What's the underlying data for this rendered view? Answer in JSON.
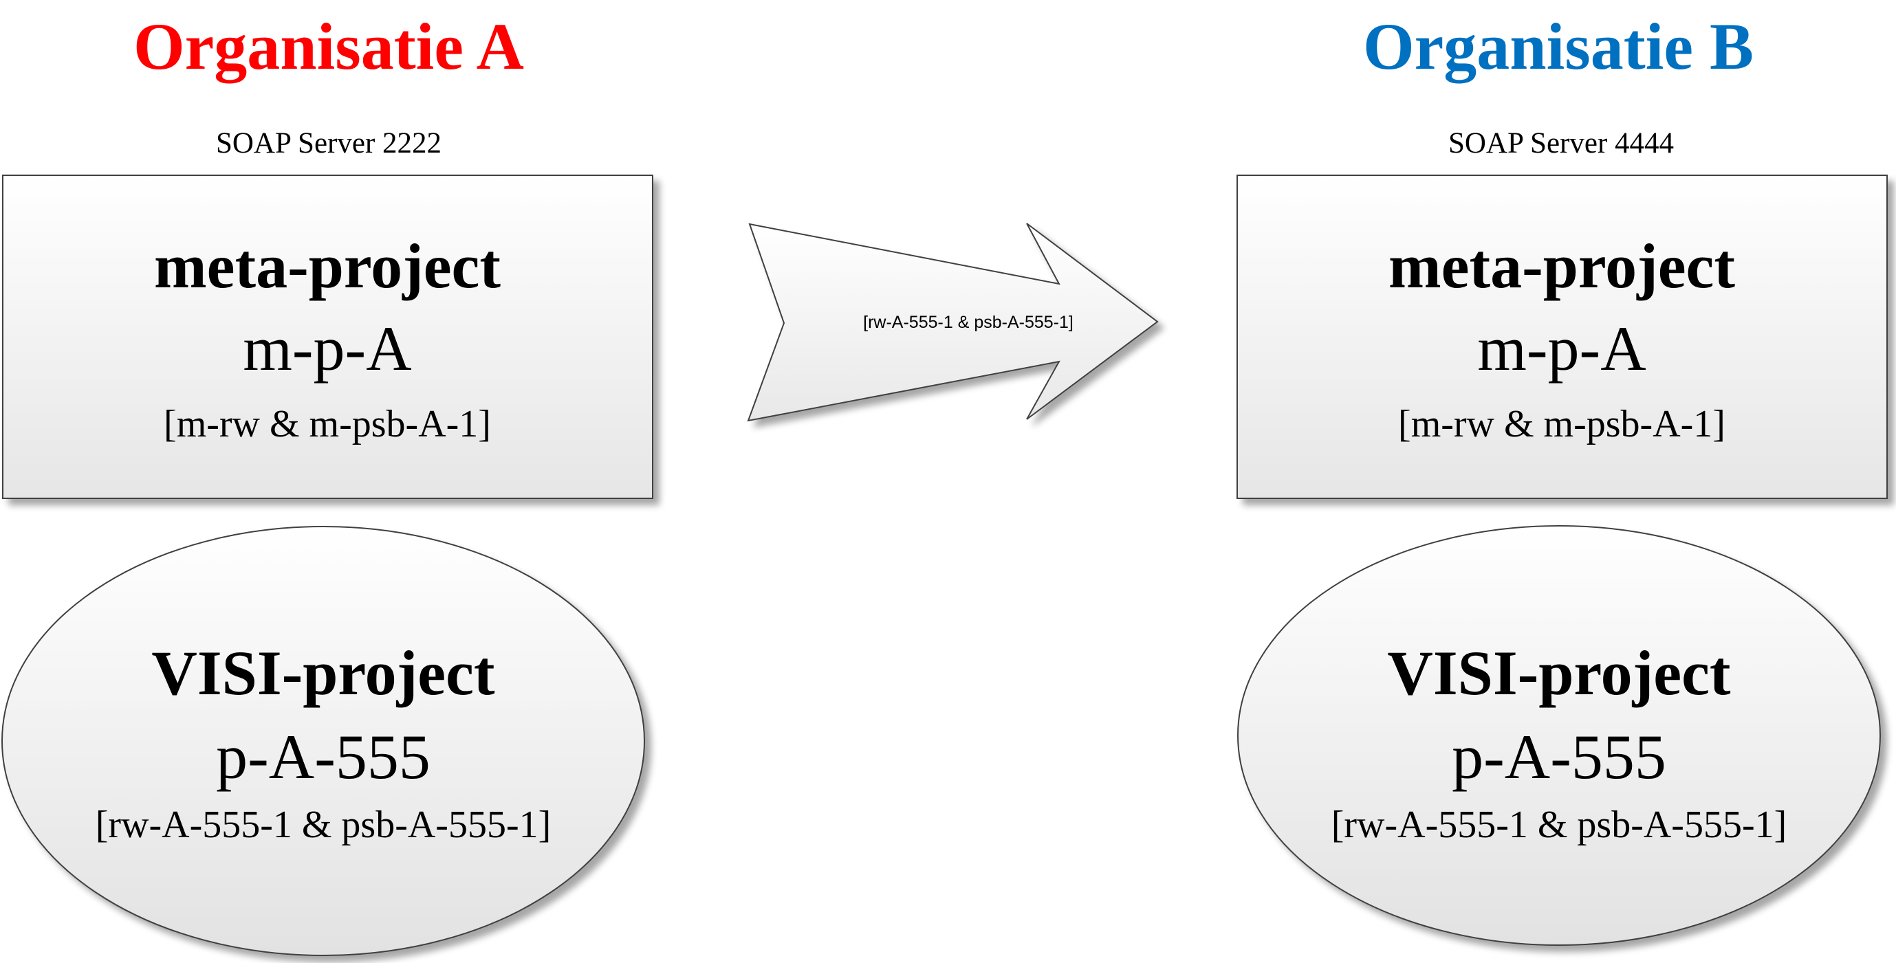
{
  "colors": {
    "org_a": "#ff0000",
    "org_b": "#0070c0",
    "text": "#000000",
    "outline": "#404040",
    "shape_fill_light": "#ffffff",
    "shape_fill_dark": "#e6e6e6"
  },
  "org_a": {
    "title": "Organisatie A",
    "server": "SOAP Server 2222",
    "meta": {
      "heading": "meta-project",
      "name": "m-p-A",
      "roles": "[m-rw & m-psb-A-1]"
    },
    "visi": {
      "heading": "VISI-project",
      "name": "p-A-555",
      "roles": "[rw-A-555-1 & psb-A-555-1]"
    }
  },
  "org_b": {
    "title": "Organisatie B",
    "server": "SOAP Server 4444",
    "meta": {
      "heading": "meta-project",
      "name": "m-p-A",
      "roles": "[m-rw & m-psb-A-1]"
    },
    "visi": {
      "heading": "VISI-project",
      "name": "p-A-555",
      "roles": "[rw-A-555-1 & psb-A-555-1]"
    }
  },
  "arrow": {
    "label": "[rw-A-555-1 & psb-A-555-1]"
  }
}
